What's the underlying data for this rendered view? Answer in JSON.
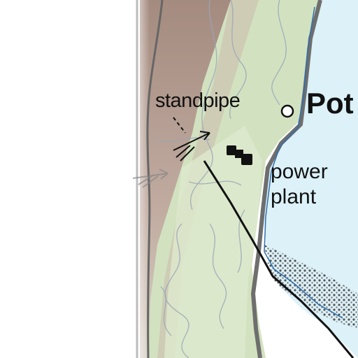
{
  "map": {
    "labels": {
      "standpipe": "standpipe",
      "town": "Pot",
      "power_plant_line1": "power",
      "power_plant_line2": "plant"
    },
    "icons": {
      "standpipe": "open-circle-marker",
      "power_plant": "black-square-markers",
      "vents": "arrow-glyph"
    },
    "colors": {
      "land": "#d2e2c0",
      "ridge": "#a7877e",
      "water": "#dcf1f8",
      "shore": "#6e6e6e",
      "contour": "#9aa6b8",
      "road": "#111111"
    }
  }
}
